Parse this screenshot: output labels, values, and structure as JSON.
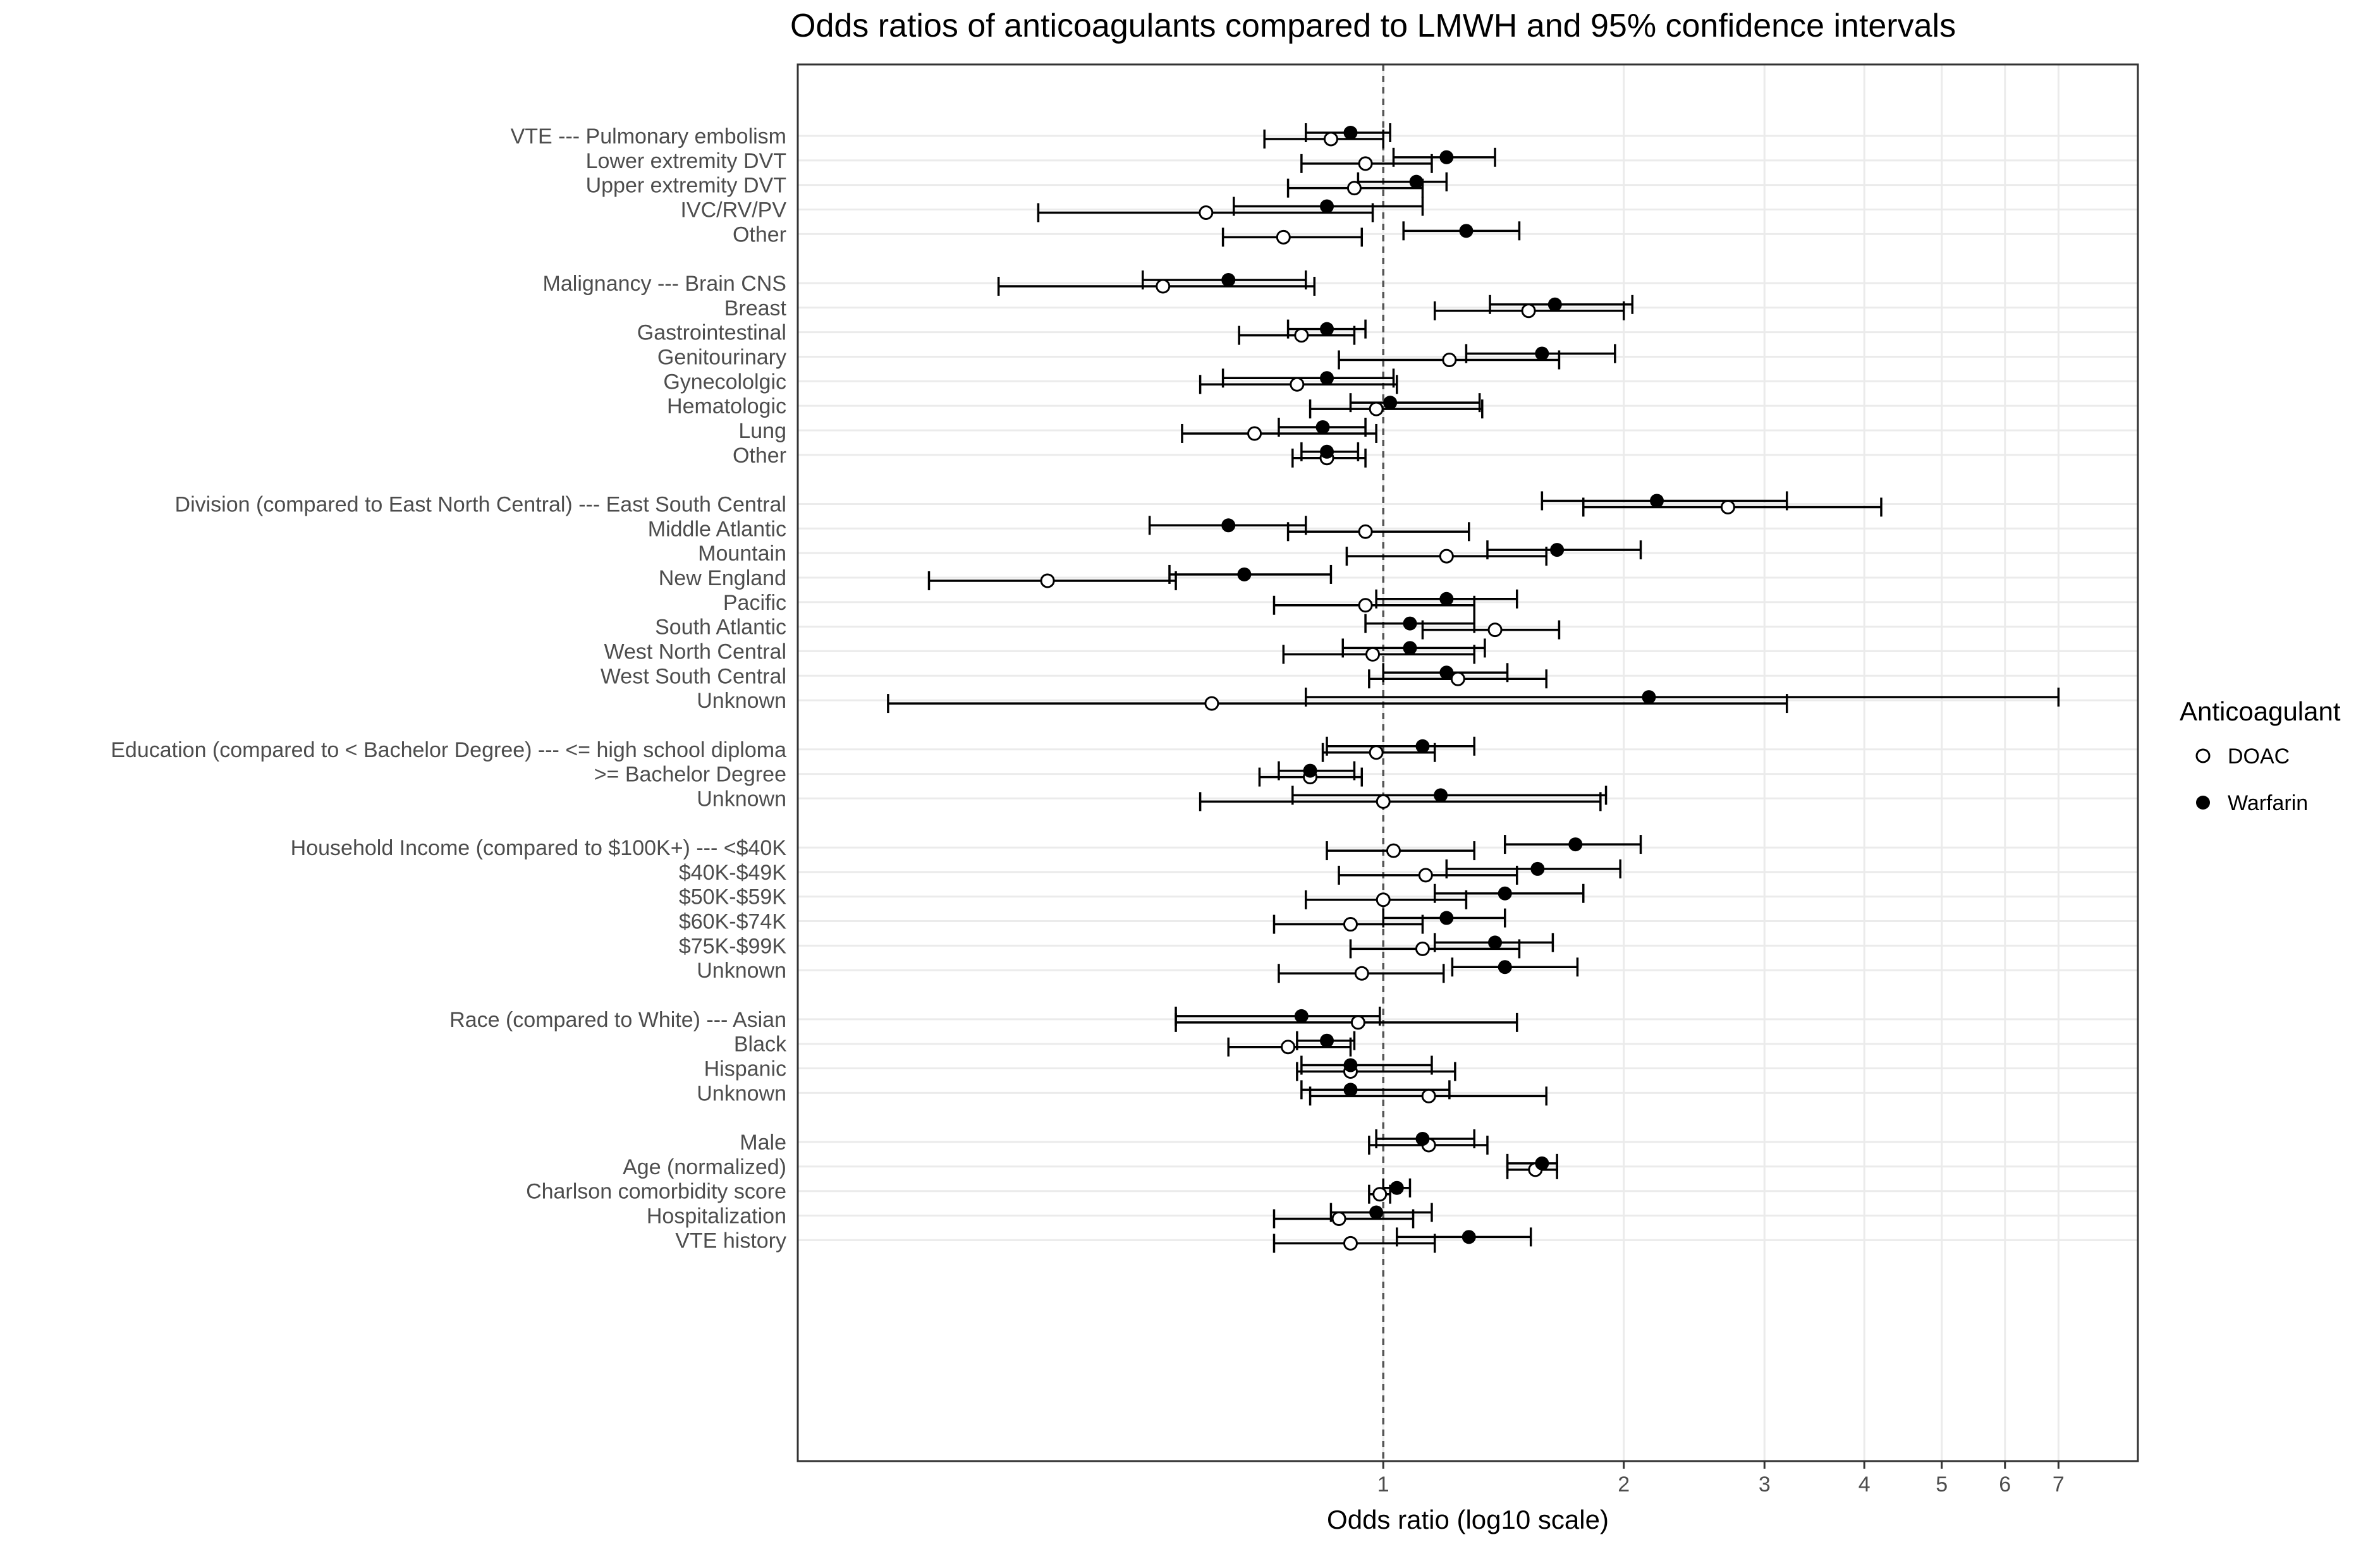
{
  "chart_data": {
    "type": "scatter",
    "subtype": "forest-plot",
    "title": "Odds ratios of anticoagulants compared to LMWH and 95% confidence intervals",
    "xlabel": "Odds ratio (log10 scale)",
    "ylabel": "",
    "xscale": "log10",
    "xlim": [
      0.185,
      8.8
    ],
    "xticks": [
      1,
      2,
      3,
      4,
      5,
      6,
      7
    ],
    "reference_line": 1,
    "grid": true,
    "legend": {
      "title": "Anticoagulant",
      "placement": "right",
      "entries": [
        {
          "name": "DOAC",
          "marker": "open-circle"
        },
        {
          "name": "Warfarin",
          "marker": "filled-circle"
        }
      ]
    },
    "categories": [
      "VTE --- Pulmonary embolism",
      "Lower extremity DVT",
      "Upper extremity DVT",
      "IVC/RV/PV",
      "Other",
      "",
      "Malignancy --- Brain CNS",
      "Breast",
      "Gastrointestinal",
      "Genitourinary",
      "Gynecololgic",
      "Hematologic",
      "Lung",
      "Other",
      "",
      "Division (compared to East North Central) --- East South Central",
      "Middle Atlantic",
      "Mountain",
      "New England",
      "Pacific",
      "South Atlantic",
      "West North Central",
      "West South Central",
      "Unknown",
      "",
      "Education (compared to < Bachelor Degree) --- <= high school diploma",
      ">= Bachelor Degree",
      "Unknown",
      "",
      "Household Income (compared to $100K+) --- <$40K",
      "$40K-$49K",
      "$50K-$59K",
      "$60K-$74K",
      "$75K-$99K",
      "Unknown",
      "",
      "Race (compared to White) --- Asian",
      "Black",
      "Hispanic",
      "Unknown",
      "",
      "Male",
      "Age (normalized)",
      "Charlson comorbidity score",
      "Hospitalization",
      "VTE history"
    ],
    "series": [
      {
        "name": "DOAC",
        "values": [
          [
            0.86,
            0.71,
            1.0
          ],
          [
            0.95,
            0.79,
            1.15
          ],
          [
            0.92,
            0.76,
            1.12
          ],
          [
            0.6,
            0.37,
            0.97
          ],
          [
            0.75,
            0.63,
            0.94
          ],
          null,
          [
            0.53,
            0.33,
            0.82
          ],
          [
            1.52,
            1.16,
            2.0
          ],
          [
            0.79,
            0.66,
            0.92
          ],
          [
            1.21,
            0.88,
            1.66
          ],
          [
            0.78,
            0.59,
            1.04
          ],
          [
            0.98,
            0.81,
            1.33
          ],
          [
            0.69,
            0.56,
            0.98
          ],
          [
            0.85,
            0.77,
            0.95
          ],
          null,
          [
            2.7,
            1.78,
            4.2
          ],
          [
            0.95,
            0.76,
            1.28
          ],
          [
            1.2,
            0.9,
            1.6
          ],
          [
            0.38,
            0.27,
            0.55
          ],
          [
            0.95,
            0.73,
            1.3
          ],
          [
            1.38,
            1.12,
            1.66
          ],
          [
            0.97,
            0.75,
            1.3
          ],
          [
            1.24,
            0.96,
            1.6
          ],
          [
            0.61,
            0.24,
            3.2
          ],
          null,
          [
            0.98,
            0.84,
            1.16
          ],
          [
            0.81,
            0.7,
            0.94
          ],
          [
            1.0,
            0.59,
            1.87
          ],
          null,
          [
            1.03,
            0.85,
            1.3
          ],
          [
            1.13,
            0.88,
            1.47
          ],
          [
            1.0,
            0.8,
            1.27
          ],
          [
            0.91,
            0.73,
            1.12
          ],
          [
            1.12,
            0.91,
            1.48
          ],
          [
            0.94,
            0.74,
            1.19
          ],
          null,
          [
            0.93,
            0.55,
            1.47
          ],
          [
            0.76,
            0.64,
            0.91
          ],
          [
            0.91,
            0.78,
            1.23
          ],
          [
            1.14,
            0.81,
            1.6
          ],
          null,
          [
            1.14,
            0.96,
            1.35
          ],
          [
            1.55,
            1.43,
            1.65
          ],
          [
            0.99,
            0.96,
            1.02
          ],
          [
            0.88,
            0.73,
            1.09
          ],
          [
            0.91,
            0.73,
            1.16
          ]
        ]
      },
      {
        "name": "Warfarin",
        "values": [
          [
            0.91,
            0.8,
            1.02
          ],
          [
            1.2,
            1.03,
            1.38
          ],
          [
            1.1,
            0.93,
            1.2
          ],
          [
            0.85,
            0.65,
            1.12
          ],
          [
            1.27,
            1.06,
            1.48
          ],
          null,
          [
            0.64,
            0.5,
            0.8
          ],
          [
            1.64,
            1.36,
            2.05
          ],
          [
            0.85,
            0.76,
            0.95
          ],
          [
            1.58,
            1.27,
            1.95
          ],
          [
            0.85,
            0.63,
            1.03
          ],
          [
            1.02,
            0.91,
            1.32
          ],
          [
            0.84,
            0.74,
            0.95
          ],
          [
            0.85,
            0.79,
            0.93
          ],
          null,
          [
            2.2,
            1.58,
            3.2
          ],
          [
            0.64,
            0.51,
            0.8
          ],
          [
            1.65,
            1.35,
            2.1
          ],
          [
            0.67,
            0.54,
            0.86
          ],
          [
            1.2,
            0.98,
            1.47
          ],
          [
            1.08,
            0.95,
            1.3
          ],
          [
            1.08,
            0.89,
            1.34
          ],
          [
            1.2,
            1.0,
            1.43
          ],
          [
            2.15,
            0.8,
            7.0
          ],
          null,
          [
            1.12,
            0.85,
            1.3
          ],
          [
            0.81,
            0.74,
            0.92
          ],
          [
            1.18,
            0.77,
            1.9
          ],
          null,
          [
            1.74,
            1.42,
            2.1
          ],
          [
            1.56,
            1.2,
            1.98
          ],
          [
            1.42,
            1.16,
            1.78
          ],
          [
            1.2,
            1.0,
            1.42
          ],
          [
            1.38,
            1.16,
            1.63
          ],
          [
            1.42,
            1.22,
            1.75
          ],
          null,
          [
            0.79,
            0.55,
            0.99
          ],
          [
            0.85,
            0.78,
            0.92
          ],
          [
            0.91,
            0.79,
            1.15
          ],
          [
            0.91,
            0.79,
            1.21
          ],
          null,
          [
            1.12,
            0.98,
            1.3
          ],
          [
            1.58,
            1.43,
            1.65
          ],
          [
            1.04,
            1.0,
            1.08
          ],
          [
            0.98,
            0.86,
            1.15
          ],
          [
            1.28,
            1.04,
            1.53
          ]
        ]
      }
    ]
  }
}
